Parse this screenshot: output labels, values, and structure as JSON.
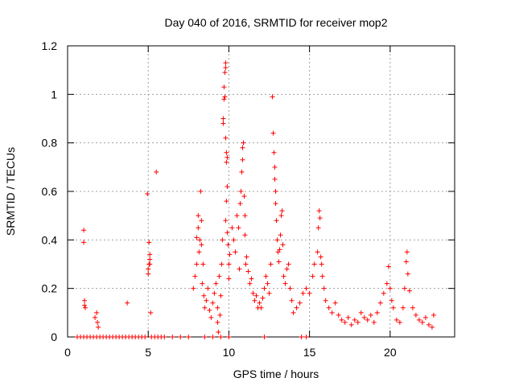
{
  "chart_data": {
    "type": "scatter",
    "title": "Day 040 of 2016, SRMTID for receiver mop2",
    "xlabel": "GPS time / hours",
    "ylabel": "SRMTID / TECUs",
    "xlim": [
      0,
      24
    ],
    "ylim": [
      0,
      1.2
    ],
    "xticks": [
      0,
      5,
      10,
      15,
      20
    ],
    "xtick_labels": [
      "0",
      "5",
      "10",
      "15",
      "20"
    ],
    "yticks": [
      0,
      0.2,
      0.4,
      0.6,
      0.8,
      1.0,
      1.2
    ],
    "ytick_labels": [
      "0",
      "0.2",
      "0.4",
      "0.6",
      "0.8",
      "1",
      "1.2"
    ],
    "grid": true,
    "marker": "+",
    "series": [
      {
        "name": "SRMTID",
        "color": "#ff0000",
        "points": [
          [
            1.0,
            0.44
          ],
          [
            1.0,
            0.39
          ],
          [
            1.05,
            0.15
          ],
          [
            1.05,
            0.13
          ],
          [
            1.1,
            0.12
          ],
          [
            1.7,
            0.08
          ],
          [
            1.8,
            0.1
          ],
          [
            1.85,
            0.06
          ],
          [
            1.9,
            0.04
          ],
          [
            3.7,
            0.14
          ],
          [
            4.95,
            0.59
          ],
          [
            5.0,
            0.26
          ],
          [
            5.0,
            0.28
          ],
          [
            5.05,
            0.3
          ],
          [
            5.05,
            0.39
          ],
          [
            5.1,
            0.34
          ],
          [
            5.1,
            0.32
          ],
          [
            5.15,
            0.1
          ],
          [
            5.1,
            0.3
          ],
          [
            5.5,
            0.68
          ],
          [
            7.8,
            0.2
          ],
          [
            7.9,
            0.25
          ],
          [
            8.0,
            0.3
          ],
          [
            8.0,
            0.41
          ],
          [
            8.1,
            0.45
          ],
          [
            8.1,
            0.5
          ],
          [
            8.15,
            0.35
          ],
          [
            8.2,
            0.4
          ],
          [
            8.25,
            0.6
          ],
          [
            8.3,
            0.48
          ],
          [
            8.3,
            0.38
          ],
          [
            8.35,
            0.22
          ],
          [
            8.4,
            0.3
          ],
          [
            8.45,
            0.17
          ],
          [
            8.5,
            0.12
          ],
          [
            8.6,
            0.15
          ],
          [
            8.7,
            0.2
          ],
          [
            8.8,
            0.11
          ],
          [
            8.9,
            0.08
          ],
          [
            9.0,
            0.14
          ],
          [
            9.1,
            0.18
          ],
          [
            9.2,
            0.22
          ],
          [
            9.3,
            0.06
          ],
          [
            9.3,
            0.12
          ],
          [
            9.35,
            0.02
          ],
          [
            9.4,
            0.25
          ],
          [
            9.45,
            0.09
          ],
          [
            9.5,
            0.17
          ],
          [
            9.55,
            0.3
          ],
          [
            9.6,
            0.4
          ],
          [
            9.65,
            0.88
          ],
          [
            9.65,
            0.9
          ],
          [
            9.7,
            0.98
          ],
          [
            9.7,
            1.03
          ],
          [
            9.75,
            0.99
          ],
          [
            9.75,
            1.09
          ],
          [
            9.8,
            1.11
          ],
          [
            9.8,
            1.13
          ],
          [
            9.8,
            0.82
          ],
          [
            9.85,
            0.76
          ],
          [
            9.85,
            0.72
          ],
          [
            9.8,
            0.48
          ],
          [
            9.85,
            0.56
          ],
          [
            9.9,
            0.62
          ],
          [
            9.9,
            0.74
          ],
          [
            9.9,
            0.43
          ],
          [
            9.95,
            0.38
          ],
          [
            10.0,
            0.3
          ],
          [
            10.0,
            0.24
          ],
          [
            10.05,
            0.34
          ],
          [
            10.2,
            0.45
          ],
          [
            10.3,
            0.4
          ],
          [
            10.4,
            0.35
          ],
          [
            10.5,
            0.5
          ],
          [
            10.6,
            0.45
          ],
          [
            10.65,
            0.28
          ],
          [
            10.7,
            0.55
          ],
          [
            10.75,
            0.6
          ],
          [
            10.8,
            0.68
          ],
          [
            10.85,
            0.73
          ],
          [
            10.85,
            0.78
          ],
          [
            10.9,
            0.8
          ],
          [
            10.95,
            0.58
          ],
          [
            11.0,
            0.5
          ],
          [
            11.0,
            0.42
          ],
          [
            11.05,
            0.3
          ],
          [
            11.1,
            0.33
          ],
          [
            11.2,
            0.27
          ],
          [
            11.3,
            0.22
          ],
          [
            11.4,
            0.24
          ],
          [
            11.5,
            0.18
          ],
          [
            11.6,
            0.15
          ],
          [
            11.7,
            0.17
          ],
          [
            11.8,
            0.12
          ],
          [
            11.9,
            0.14
          ],
          [
            12.0,
            0.12
          ],
          [
            12.1,
            0.16
          ],
          [
            12.2,
            0.2
          ],
          [
            12.3,
            0.25
          ],
          [
            12.4,
            0.22
          ],
          [
            12.5,
            0.18
          ],
          [
            12.6,
            0.3
          ],
          [
            12.7,
            0.99
          ],
          [
            12.75,
            0.84
          ],
          [
            12.8,
            0.76
          ],
          [
            12.85,
            0.65
          ],
          [
            12.85,
            0.7
          ],
          [
            12.9,
            0.6
          ],
          [
            12.9,
            0.55
          ],
          [
            12.95,
            0.48
          ],
          [
            13.0,
            0.4
          ],
          [
            13.05,
            0.35
          ],
          [
            13.1,
            0.31
          ],
          [
            13.15,
            0.36
          ],
          [
            13.2,
            0.42
          ],
          [
            13.25,
            0.5
          ],
          [
            13.3,
            0.52
          ],
          [
            13.35,
            0.38
          ],
          [
            13.4,
            0.25
          ],
          [
            13.5,
            0.22
          ],
          [
            13.6,
            0.28
          ],
          [
            13.7,
            0.3
          ],
          [
            13.8,
            0.2
          ],
          [
            13.9,
            0.15
          ],
          [
            14.0,
            0.1
          ],
          [
            14.2,
            0.12
          ],
          [
            14.4,
            0.14
          ],
          [
            14.6,
            0.18
          ],
          [
            14.8,
            0.2
          ],
          [
            15.0,
            0.18
          ],
          [
            15.2,
            0.25
          ],
          [
            15.3,
            0.3
          ],
          [
            15.5,
            0.35
          ],
          [
            15.55,
            0.45
          ],
          [
            15.6,
            0.52
          ],
          [
            15.65,
            0.49
          ],
          [
            15.7,
            0.33
          ],
          [
            15.75,
            0.3
          ],
          [
            15.8,
            0.25
          ],
          [
            15.9,
            0.2
          ],
          [
            16.0,
            0.15
          ],
          [
            16.2,
            0.12
          ],
          [
            16.4,
            0.1
          ],
          [
            16.6,
            0.14
          ],
          [
            16.8,
            0.09
          ],
          [
            17.0,
            0.07
          ],
          [
            17.2,
            0.06
          ],
          [
            17.4,
            0.08
          ],
          [
            17.6,
            0.05
          ],
          [
            17.8,
            0.07
          ],
          [
            18.0,
            0.06
          ],
          [
            18.2,
            0.1
          ],
          [
            18.4,
            0.08
          ],
          [
            18.6,
            0.07
          ],
          [
            18.8,
            0.09
          ],
          [
            19.0,
            0.06
          ],
          [
            19.2,
            0.1
          ],
          [
            19.4,
            0.14
          ],
          [
            19.6,
            0.18
          ],
          [
            19.8,
            0.22
          ],
          [
            19.9,
            0.29
          ],
          [
            20.0,
            0.2
          ],
          [
            20.1,
            0.15
          ],
          [
            20.2,
            0.12
          ],
          [
            20.4,
            0.07
          ],
          [
            20.6,
            0.06
          ],
          [
            20.8,
            0.12
          ],
          [
            20.9,
            0.2
          ],
          [
            21.0,
            0.31
          ],
          [
            21.05,
            0.35
          ],
          [
            21.1,
            0.26
          ],
          [
            21.2,
            0.19
          ],
          [
            21.4,
            0.12
          ],
          [
            21.6,
            0.09
          ],
          [
            21.8,
            0.07
          ],
          [
            22.0,
            0.06
          ],
          [
            22.2,
            0.08
          ],
          [
            22.4,
            0.05
          ],
          [
            22.6,
            0.04
          ],
          [
            22.7,
            0.09
          ]
        ]
      }
    ],
    "zero_points_x": [
      0.6,
      0.8,
      1.0,
      1.2,
      1.4,
      1.6,
      1.8,
      2.0,
      2.2,
      2.4,
      2.6,
      2.8,
      3.0,
      3.2,
      3.4,
      3.6,
      3.8,
      4.0,
      4.2,
      4.4,
      4.6,
      4.8,
      5.2,
      5.4,
      5.6,
      5.8,
      6.0,
      6.5,
      7.0,
      7.5,
      8.5,
      9.0,
      9.5,
      10.0,
      12.2,
      14.5,
      14.8
    ]
  }
}
